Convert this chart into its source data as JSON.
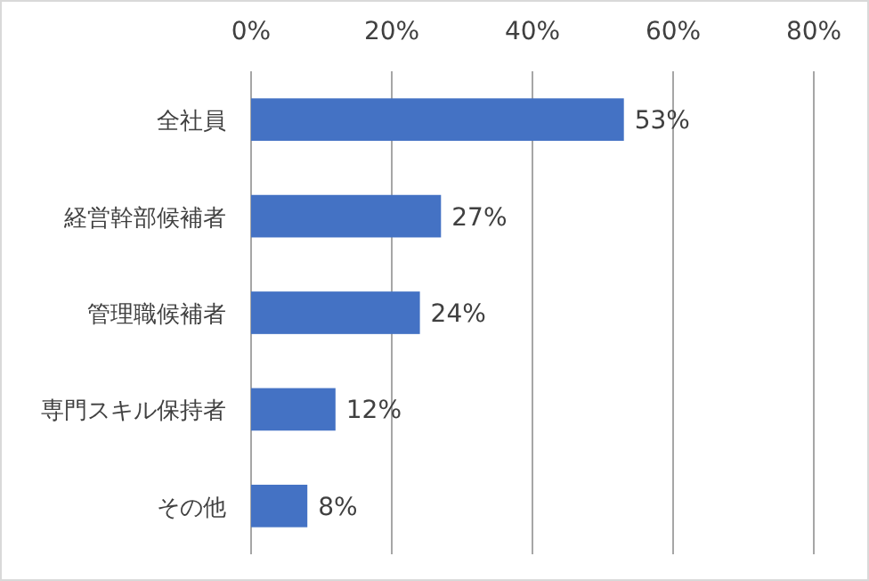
{
  "chart_data": {
    "type": "bar",
    "orientation": "horizontal",
    "categories": [
      "全社員",
      "経営幹部候補者",
      "管理職候補者",
      "専門スキル保持者",
      "その他"
    ],
    "values": [
      53,
      27,
      24,
      12,
      8
    ],
    "value_labels": [
      "53%",
      "27%",
      "24%",
      "12%",
      "8%"
    ],
    "color": "#4472c4",
    "xlim": [
      0,
      80
    ],
    "xticks": [
      {
        "value": 0,
        "label": "0%"
      },
      {
        "value": 20,
        "label": "20%"
      },
      {
        "value": 40,
        "label": "40%"
      },
      {
        "value": 60,
        "label": "60%"
      },
      {
        "value": 80,
        "label": "80%"
      }
    ],
    "grid": "x"
  }
}
